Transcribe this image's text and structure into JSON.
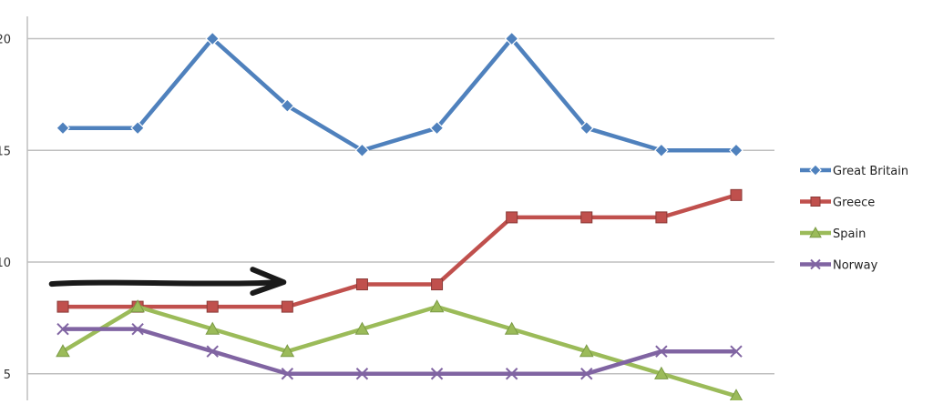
{
  "chart_data": {
    "type": "line",
    "title": "",
    "xlabel": "",
    "ylabel": "",
    "x": [
      1,
      2,
      3,
      4,
      5,
      6,
      7,
      8,
      9,
      10
    ],
    "ylim": [
      4,
      21
    ],
    "yticks": [
      5,
      10,
      15,
      20
    ],
    "ytick_labels": [
      "5",
      "10",
      "15",
      "20"
    ],
    "grid": true,
    "legend_position": "right",
    "series": [
      {
        "name": "Great Britain",
        "color": "#4F81BD",
        "marker": "diamond",
        "values": [
          16,
          16,
          20,
          17,
          15,
          16,
          20,
          16,
          15,
          15
        ]
      },
      {
        "name": "Greece",
        "color": "#C0504D",
        "marker": "square",
        "values": [
          8,
          8,
          8,
          8,
          9,
          9,
          12,
          12,
          12,
          13
        ]
      },
      {
        "name": "Spain",
        "color": "#9BBB59",
        "marker": "triangle",
        "values": [
          6,
          8,
          7,
          6,
          7,
          8,
          7,
          6,
          5,
          4
        ]
      },
      {
        "name": "Norway",
        "color": "#8064A2",
        "marker": "x",
        "values": [
          7,
          7,
          6,
          5,
          5,
          5,
          5,
          5,
          6,
          6
        ]
      }
    ],
    "annotations": [
      {
        "type": "arrow",
        "color": "#1a1a1a",
        "from": [
          0.85,
          9.1
        ],
        "to": [
          4,
          9.1
        ]
      }
    ]
  }
}
